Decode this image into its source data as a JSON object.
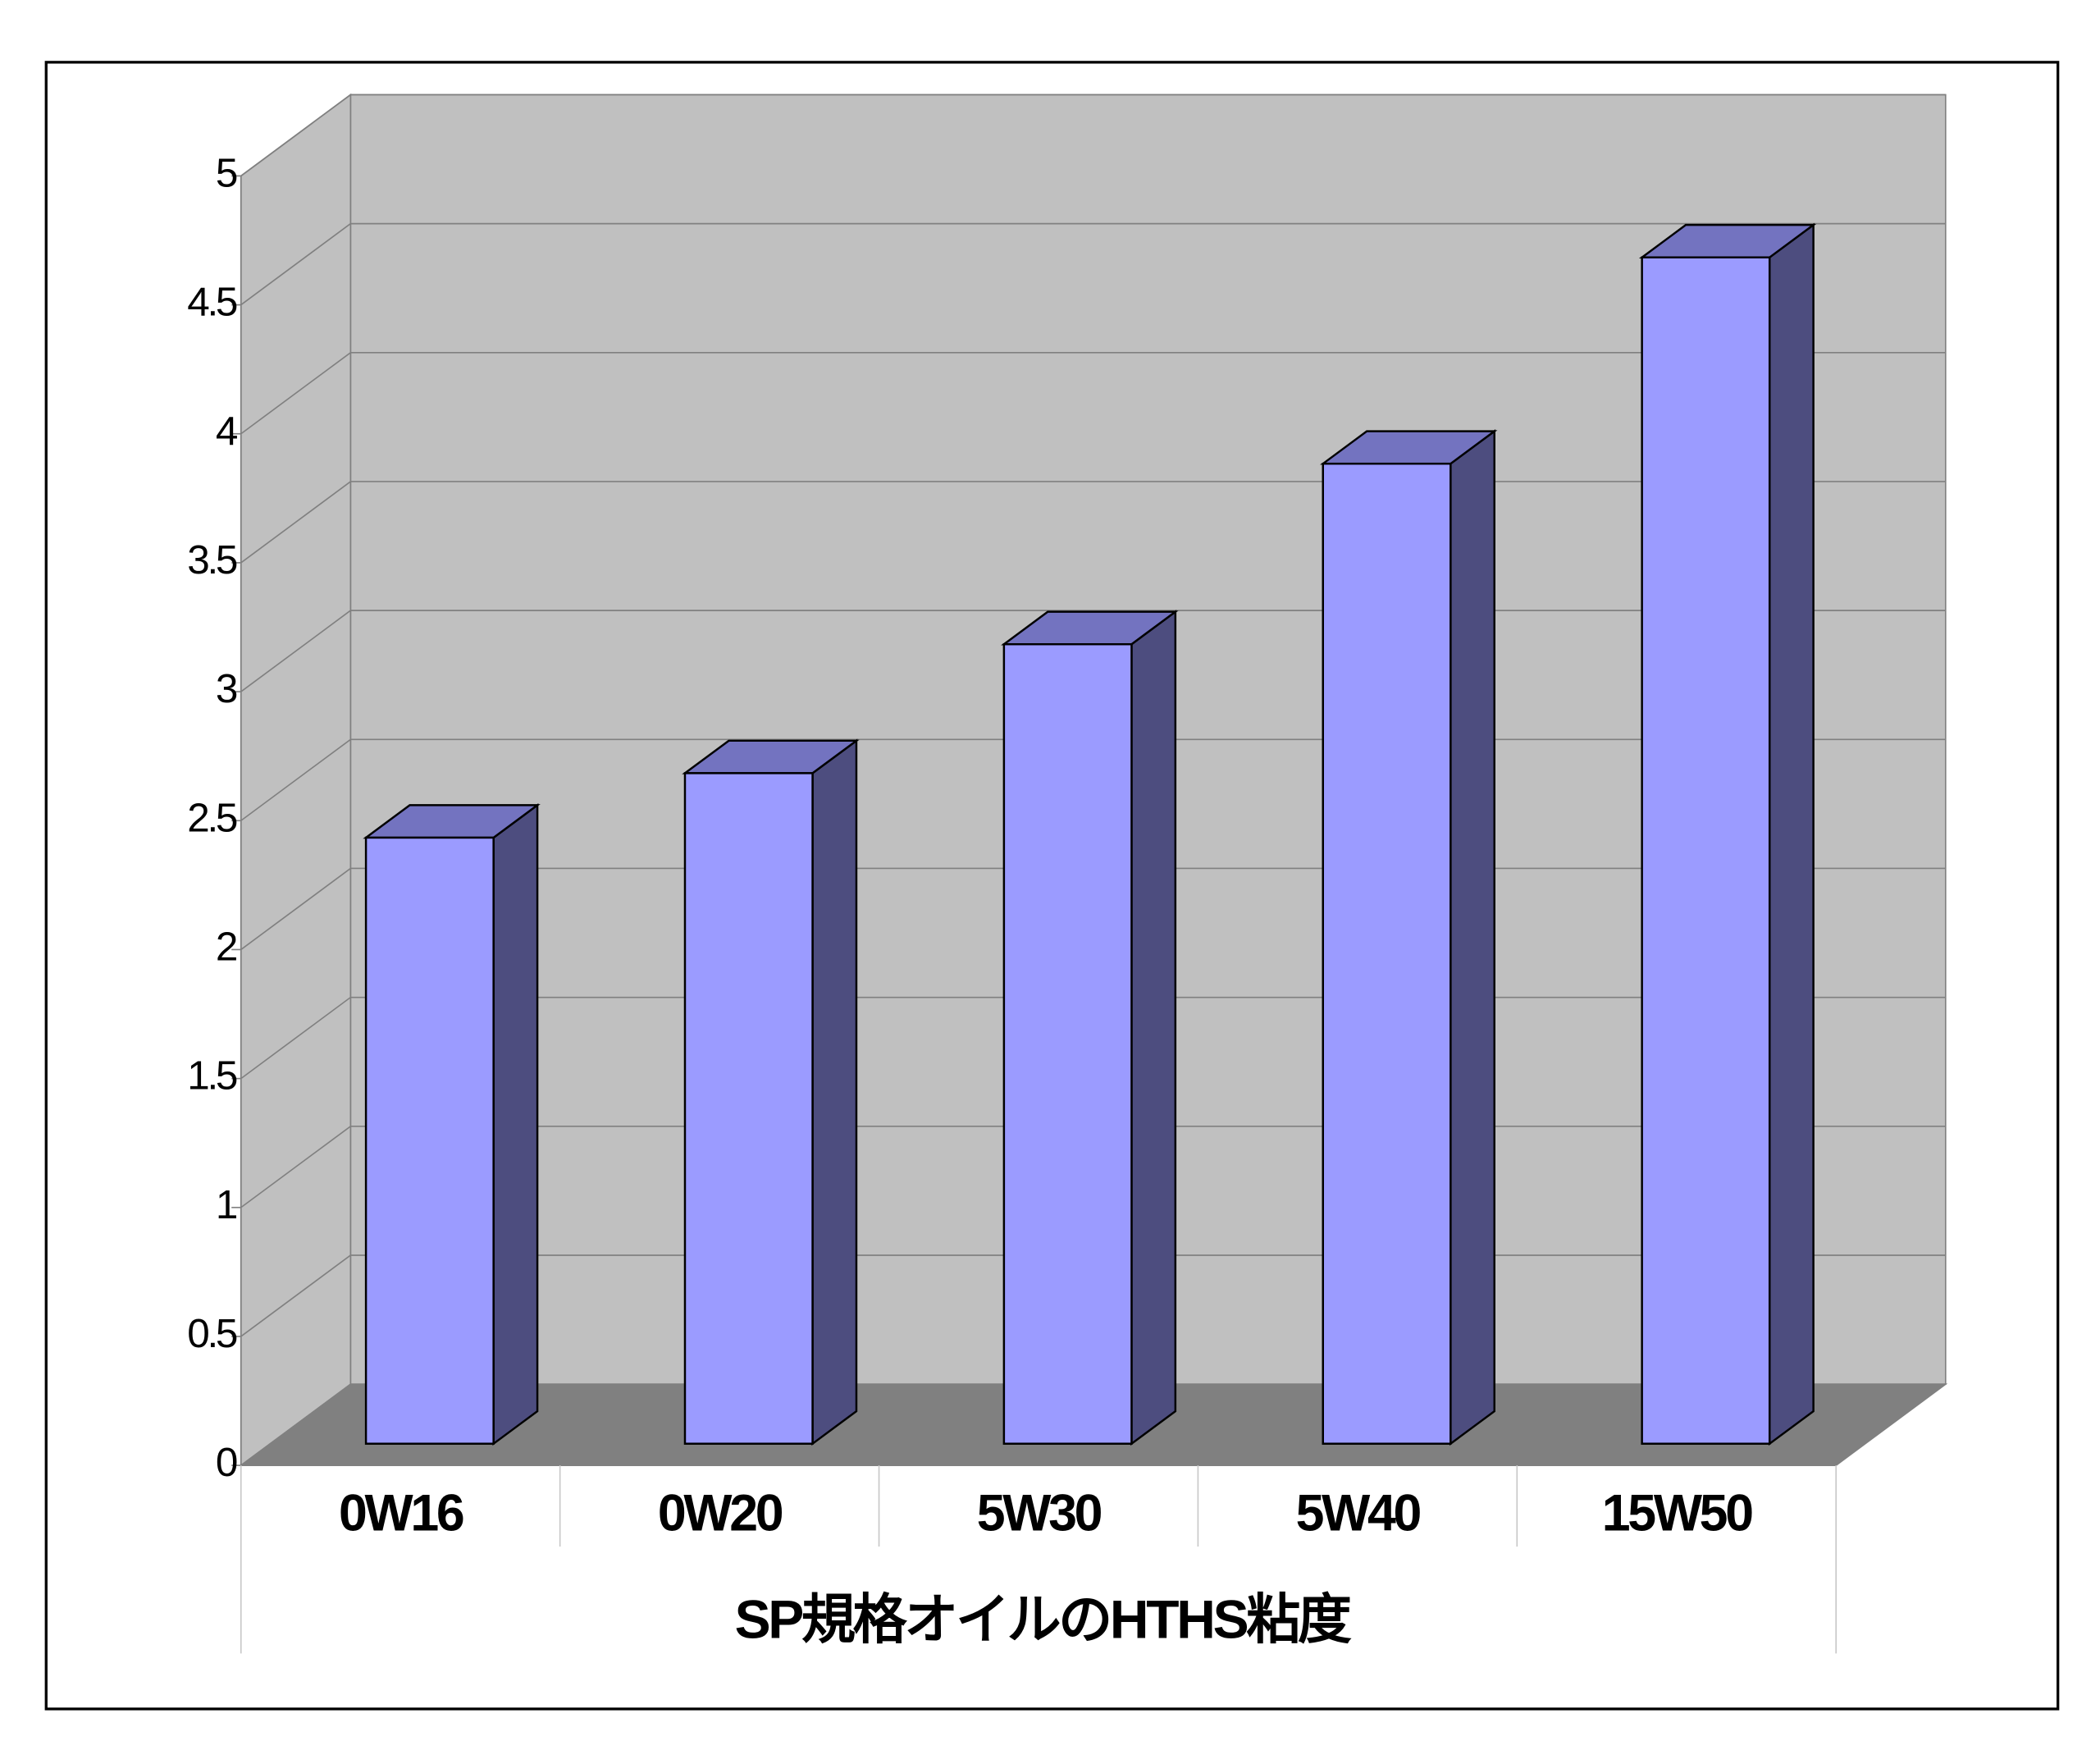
{
  "chart_data": {
    "type": "bar3d",
    "x_label": "SP規格オイルのHTHS粘度",
    "categories": [
      "0W16",
      "0W20",
      "5W30",
      "5W40",
      "15W50"
    ],
    "values": [
      2.35,
      2.6,
      3.1,
      3.8,
      4.6
    ],
    "color": "#9b9bff",
    "ylim": [
      0,
      5
    ],
    "yticks": [
      0,
      0.5,
      1,
      1.5,
      2,
      2.5,
      3,
      3.5,
      4,
      4.5,
      5
    ],
    "grid": true
  }
}
